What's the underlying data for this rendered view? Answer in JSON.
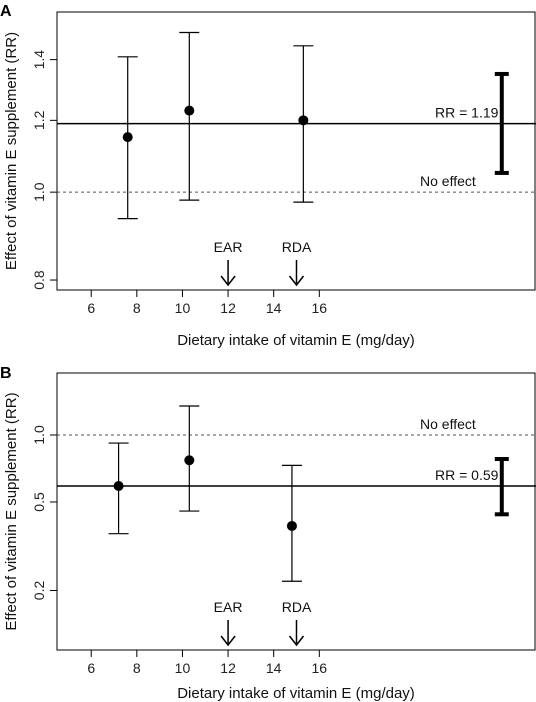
{
  "chart_data": [
    {
      "type": "scatter",
      "panel_label": "A",
      "xlabel": "Dietary intake of vitamin E (mg/day)",
      "ylabel": "Effect of vitamin E supplement (RR)",
      "x_ticks": [
        "6",
        "8",
        "10",
        "12",
        "14",
        "16"
      ],
      "y_ticks": [
        "0.8",
        "1.0",
        "1.2",
        "1.4"
      ],
      "y_scale": "log",
      "xlim": [
        4.5,
        25.5
      ],
      "ylim": [
        0.78,
        1.58
      ],
      "points": [
        {
          "x": 7.6,
          "y": 1.15,
          "lower": 0.935,
          "upper": 1.41
        },
        {
          "x": 10.3,
          "y": 1.23,
          "lower": 0.98,
          "upper": 1.5
        },
        {
          "x": 15.3,
          "y": 1.2,
          "lower": 0.975,
          "upper": 1.45
        }
      ],
      "pooled": {
        "x": 24.0,
        "y": 1.19,
        "lower": 1.05,
        "upper": 1.35,
        "label": "RR = 1.19"
      },
      "reference": {
        "y": 1.0,
        "label": "No effect"
      },
      "markers": [
        {
          "x": 12,
          "label": "EAR"
        },
        {
          "x": 15,
          "label": "RDA"
        }
      ]
    },
    {
      "type": "scatter",
      "panel_label": "B",
      "xlabel": "Dietary intake of vitamin E (mg/day)",
      "ylabel": "Effect of vitamin E supplement (RR)",
      "x_ticks": [
        "6",
        "8",
        "10",
        "12",
        "14",
        "16"
      ],
      "y_ticks": [
        "0.2",
        "0.5",
        "1.0"
      ],
      "y_scale": "log",
      "xlim": [
        4.5,
        25.5
      ],
      "ylim": [
        0.108,
        1.9
      ],
      "points": [
        {
          "x": 7.2,
          "y": 0.59,
          "lower": 0.36,
          "upper": 0.92
        },
        {
          "x": 10.3,
          "y": 0.77,
          "lower": 0.455,
          "upper": 1.35
        },
        {
          "x": 14.8,
          "y": 0.39,
          "lower": 0.22,
          "upper": 0.73
        }
      ],
      "pooled": {
        "x": 24.0,
        "y": 0.59,
        "lower": 0.44,
        "upper": 0.78,
        "label": "RR = 0.59"
      },
      "reference": {
        "y": 1.0,
        "label": "No effect"
      },
      "markers": [
        {
          "x": 12,
          "label": "EAR"
        },
        {
          "x": 15,
          "label": "RDA"
        }
      ]
    }
  ]
}
